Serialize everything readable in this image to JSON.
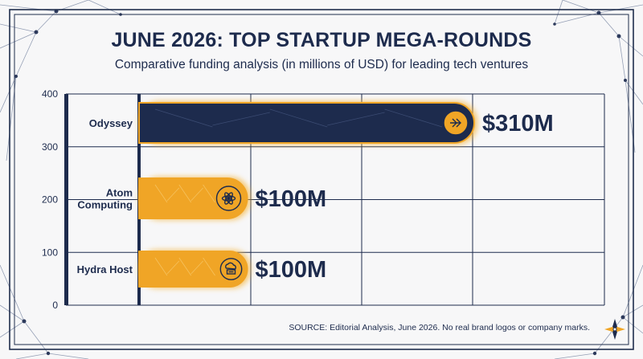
{
  "header": {
    "title": "JUNE 2026: TOP STARTUP MEGA-ROUNDS",
    "subtitle": "Comparative funding analysis (in millions of USD) for leading tech ventures"
  },
  "footer": {
    "source": "SOURCE: Editorial Analysis, June 2026. No real brand logos or company marks."
  },
  "colors": {
    "navy": "#1d2b4d",
    "gold": "#f0a526",
    "background": "#f7f7f8"
  },
  "chart_data": {
    "type": "bar",
    "orientation": "horizontal",
    "title": "JUNE 2026: TOP STARTUP MEGA-ROUNDS",
    "subtitle": "Comparative funding analysis (in millions of USD) for leading tech ventures",
    "ylim": [
      0,
      400
    ],
    "yticks": [
      0,
      100,
      200,
      300,
      400
    ],
    "grid": true,
    "bars": [
      {
        "name": "Odyssey",
        "value": 310,
        "label": "$310M",
        "color": "#1d2b4d",
        "icon": "arrow-right-icon"
      },
      {
        "name": "Atom Computing",
        "value": 100,
        "label": "$100M",
        "color": "#f0a526",
        "icon": "atom-icon"
      },
      {
        "name": "Hydra Host",
        "value": 100,
        "label": "$100M",
        "color": "#f0a526",
        "icon": "cloud-server-icon"
      }
    ]
  }
}
